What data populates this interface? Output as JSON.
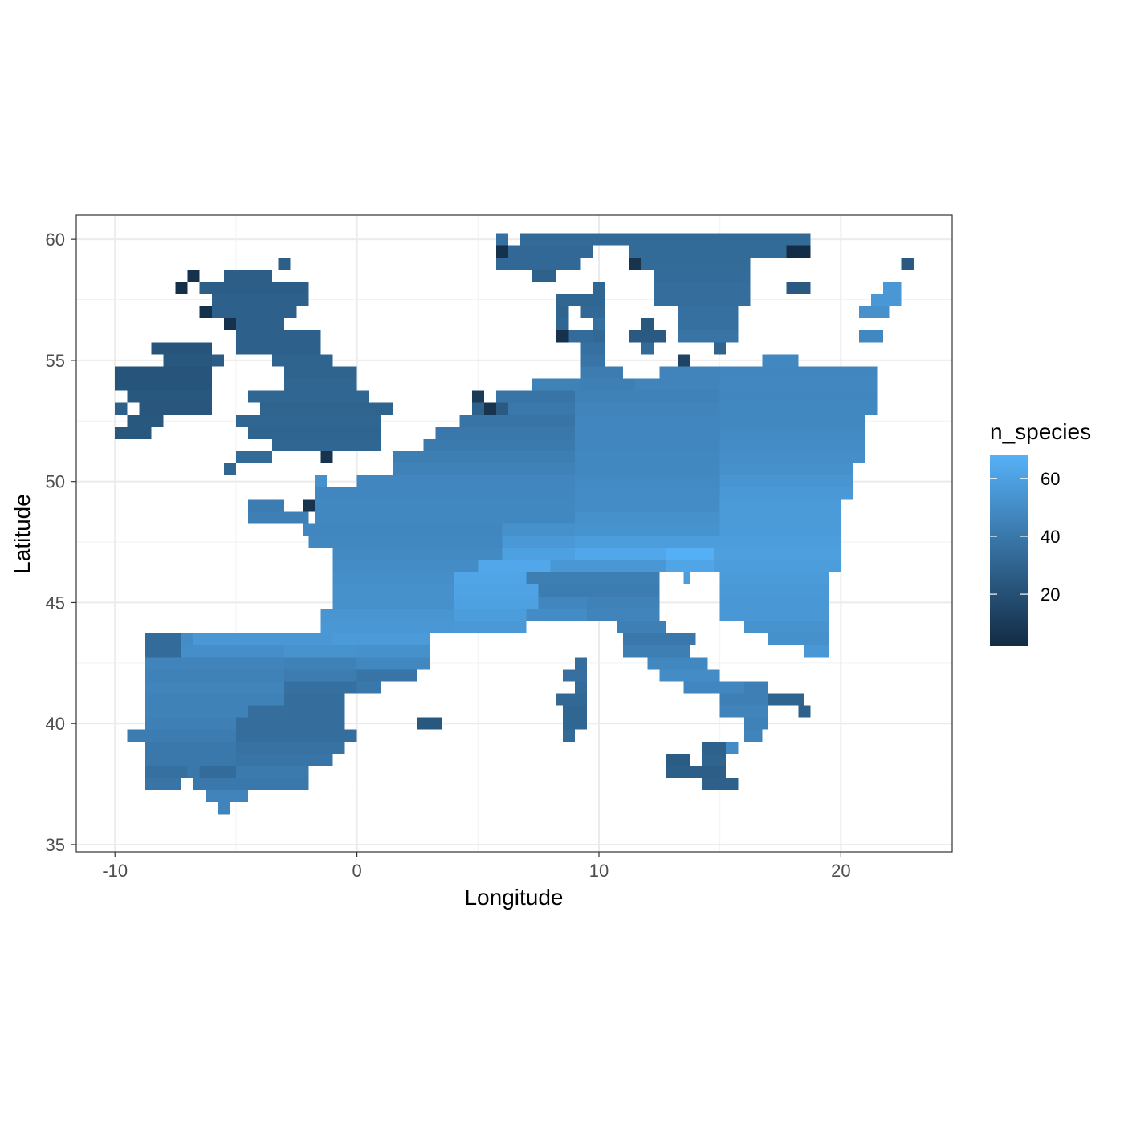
{
  "chart_data": {
    "type": "heatmap",
    "title": "",
    "xlabel": "Longitude",
    "ylabel": "Latitude",
    "xlim": [
      -11.6,
      24.6
    ],
    "ylim": [
      34.7,
      61.0
    ],
    "x_ticks": [
      -10,
      0,
      10,
      20
    ],
    "y_ticks": [
      35,
      40,
      45,
      50,
      55,
      60
    ],
    "x_tick_labels": [
      "-10",
      "0",
      "10",
      "20"
    ],
    "y_tick_labels": [
      "35",
      "40",
      "45",
      "50",
      "55",
      "60"
    ],
    "grid": true,
    "cell_size_deg": 0.5,
    "legend": {
      "title": "n_species",
      "position": "right",
      "min": 2,
      "max": 68,
      "breaks": [
        20,
        40,
        60
      ],
      "break_labels": [
        "20",
        "40",
        "60"
      ],
      "color_low": "#132b43",
      "color_high": "#56b1f7"
    },
    "rows_lat_start": 60.0,
    "rows_lat_step": -0.5,
    "row_segments": [
      [
        [
          5.75,
          6.25,
          36
        ],
        [
          6.75,
          18.75,
          33
        ]
      ],
      [
        [
          5.75,
          6.25,
          5
        ],
        [
          6.25,
          9.75,
          32
        ],
        [
          11.25,
          17.75,
          33
        ],
        [
          17.75,
          18.75,
          3
        ]
      ],
      [
        [
          5.75,
          9.25,
          32
        ],
        [
          11.25,
          11.75,
          6
        ],
        [
          11.75,
          16.25,
          33
        ],
        [
          -3.25,
          -2.75,
          27
        ],
        [
          22.5,
          23.0,
          25
        ]
      ],
      [
        [
          7.25,
          8.25,
          29
        ],
        [
          12.25,
          16.25,
          34
        ],
        [
          -5.5,
          -3.5,
          27
        ],
        [
          -7.0,
          -6.5,
          5
        ]
      ],
      [
        [
          9.75,
          10.25,
          31
        ],
        [
          12.25,
          16.25,
          35
        ],
        [
          -7.5,
          -7.0,
          4
        ],
        [
          -6.5,
          -2.0,
          27
        ],
        [
          17.75,
          18.75,
          25
        ],
        [
          21.75,
          22.5,
          55
        ]
      ],
      [
        [
          8.25,
          10.25,
          31
        ],
        [
          12.25,
          16.25,
          35
        ],
        [
          -6.0,
          -2.0,
          28
        ],
        [
          21.25,
          22.5,
          55
        ]
      ],
      [
        [
          8.25,
          8.75,
          30
        ],
        [
          9.25,
          10.25,
          32
        ],
        [
          13.25,
          15.75,
          36
        ],
        [
          -6.5,
          -6.0,
          5
        ],
        [
          -6.0,
          -2.5,
          28
        ],
        [
          20.75,
          22.0,
          52
        ]
      ],
      [
        [
          8.25,
          8.75,
          31
        ],
        [
          9.75,
          10.25,
          36
        ],
        [
          11.75,
          12.25,
          24
        ],
        [
          13.25,
          15.75,
          36
        ],
        [
          -5.5,
          -5.0,
          5
        ],
        [
          -5.0,
          -3.0,
          28
        ]
      ],
      [
        [
          8.25,
          8.75,
          5
        ],
        [
          8.75,
          9.75,
          34
        ],
        [
          9.75,
          10.25,
          32
        ],
        [
          11.25,
          12.75,
          25
        ],
        [
          13.25,
          15.75,
          38
        ],
        [
          -5.0,
          -1.5,
          28
        ],
        [
          20.75,
          21.75,
          48
        ]
      ],
      [
        [
          9.25,
          10.25,
          36
        ],
        [
          11.75,
          12.25,
          33
        ],
        [
          14.75,
          15.25,
          30
        ],
        [
          -8.5,
          -6.0,
          22
        ],
        [
          -5.0,
          -1.5,
          28
        ]
      ],
      [
        [
          9.25,
          10.25,
          38
        ],
        [
          13.25,
          13.75,
          14
        ],
        [
          16.75,
          18.25,
          48
        ],
        [
          -8.0,
          -6.0,
          24
        ],
        [
          -6.0,
          -5.5,
          26
        ],
        [
          -3.5,
          -1.0,
          30
        ]
      ],
      [
        [
          9.25,
          11.0,
          42
        ],
        [
          -10.0,
          -6.0,
          22
        ],
        [
          -3.0,
          0.0,
          30
        ],
        [
          12.5,
          15.0,
          46
        ],
        [
          15.0,
          21.5,
          47
        ]
      ],
      [
        [
          7.25,
          9.25,
          45
        ],
        [
          9.25,
          11.5,
          44
        ],
        [
          11.5,
          15.0,
          46
        ],
        [
          15.0,
          21.5,
          48
        ],
        [
          -10.0,
          -6.0,
          22
        ],
        [
          -3.0,
          0.0,
          31
        ]
      ],
      [
        [
          4.75,
          5.25,
          10
        ],
        [
          5.75,
          9.0,
          38
        ],
        [
          9.0,
          15.0,
          45
        ],
        [
          15.0,
          21.5,
          47
        ],
        [
          -9.5,
          -6.0,
          24
        ],
        [
          -4.5,
          0.5,
          31
        ]
      ],
      [
        [
          5.25,
          5.75,
          6
        ],
        [
          5.75,
          6.25,
          25
        ],
        [
          4.75,
          5.25,
          28
        ],
        [
          6.25,
          9.0,
          40
        ],
        [
          9.0,
          15.0,
          46
        ],
        [
          15.0,
          21.5,
          48
        ],
        [
          -10.0,
          -9.5,
          28
        ],
        [
          -9.0,
          -6.0,
          23
        ],
        [
          -4.0,
          1.5,
          30
        ]
      ],
      [
        [
          4.25,
          9.0,
          38
        ],
        [
          9.0,
          15.0,
          47
        ],
        [
          15.0,
          21.0,
          48
        ],
        [
          -9.5,
          -8.0,
          24
        ],
        [
          -5.0,
          1.0,
          31
        ]
      ],
      [
        [
          3.25,
          9.0,
          40
        ],
        [
          9.0,
          15.0,
          47
        ],
        [
          15.0,
          21.0,
          49
        ],
        [
          -10.0,
          -8.5,
          24
        ],
        [
          -4.5,
          1.0,
          30
        ]
      ],
      [
        [
          2.75,
          9.0,
          41
        ],
        [
          9.0,
          15.0,
          47
        ],
        [
          15.0,
          21.0,
          50
        ],
        [
          -3.5,
          1.0,
          31
        ]
      ],
      [
        [
          1.5,
          9.0,
          43
        ],
        [
          9.0,
          15.0,
          48
        ],
        [
          15.0,
          21.0,
          51
        ],
        [
          -5.0,
          -3.5,
          33
        ],
        [
          -1.5,
          -1.0,
          6
        ]
      ],
      [
        [
          1.5,
          9.0,
          45
        ],
        [
          9.0,
          15.0,
          48
        ],
        [
          15.0,
          20.5,
          52
        ],
        [
          -5.5,
          -5.0,
          31
        ]
      ],
      [
        [
          0.0,
          9.0,
          47
        ],
        [
          9.0,
          15.0,
          49
        ],
        [
          15.0,
          20.5,
          54
        ],
        [
          -1.75,
          -1.25,
          52
        ]
      ],
      [
        [
          -1.75,
          9.0,
          47
        ],
        [
          9.0,
          15.0,
          50
        ],
        [
          15.0,
          20.5,
          56
        ]
      ],
      [
        [
          -1.75,
          9.0,
          48
        ],
        [
          9.0,
          15.0,
          50
        ],
        [
          15.0,
          20.0,
          57
        ],
        [
          -4.5,
          -3.0,
          42
        ],
        [
          -2.25,
          -1.75,
          6
        ]
      ],
      [
        [
          -1.75,
          9.0,
          48
        ],
        [
          9.0,
          15.0,
          52
        ],
        [
          15.0,
          20.0,
          57
        ],
        [
          -4.5,
          -2.0,
          44
        ]
      ],
      [
        [
          -2.25,
          6.0,
          47
        ],
        [
          6.0,
          9.0,
          52
        ],
        [
          9.0,
          15.0,
          53
        ],
        [
          15.0,
          20.0,
          57
        ]
      ],
      [
        [
          -2.0,
          6.0,
          48
        ],
        [
          6.0,
          9.0,
          56
        ],
        [
          9.0,
          15.0,
          58
        ],
        [
          15.0,
          20.0,
          58
        ]
      ],
      [
        [
          -1.0,
          6.0,
          49
        ],
        [
          6.0,
          9.0,
          60
        ],
        [
          9.0,
          12.75,
          63
        ],
        [
          12.75,
          14.75,
          67
        ],
        [
          14.75,
          20.0,
          59
        ]
      ],
      [
        [
          -1.0,
          5.0,
          50
        ],
        [
          5.0,
          8.0,
          63
        ],
        [
          8.0,
          12.75,
          55
        ],
        [
          12.75,
          14.75,
          62
        ],
        [
          14.75,
          20.0,
          58
        ]
      ],
      [
        [
          -1.0,
          4.0,
          51
        ],
        [
          4.0,
          7.0,
          62
        ],
        [
          7.0,
          12.5,
          43
        ],
        [
          13.5,
          13.75,
          58
        ],
        [
          15.0,
          19.5,
          57
        ]
      ],
      [
        [
          -1.0,
          4.0,
          52
        ],
        [
          4.0,
          7.5,
          61
        ],
        [
          7.5,
          12.5,
          42
        ],
        [
          15.0,
          19.5,
          56
        ]
      ],
      [
        [
          -1.0,
          4.0,
          52
        ],
        [
          4.0,
          7.5,
          60
        ],
        [
          7.5,
          9.5,
          47
        ],
        [
          9.5,
          12.5,
          45
        ],
        [
          15.0,
          19.5,
          55
        ]
      ],
      [
        [
          -1.5,
          4.0,
          54
        ],
        [
          4.0,
          7.0,
          58
        ],
        [
          7.0,
          9.5,
          50
        ],
        [
          9.5,
          12.5,
          46
        ],
        [
          15.0,
          19.5,
          55
        ]
      ],
      [
        [
          -1.5,
          4.0,
          55
        ],
        [
          4.0,
          7.0,
          56
        ],
        [
          10.75,
          12.75,
          44
        ],
        [
          16.0,
          19.5,
          53
        ]
      ],
      [
        [
          -8.75,
          -7.25,
          34
        ],
        [
          -7.25,
          -6.75,
          50
        ],
        [
          -6.75,
          -1.0,
          55
        ],
        [
          -1.0,
          3.0,
          57
        ],
        [
          11.0,
          14.0,
          40
        ],
        [
          17.0,
          19.5,
          52
        ]
      ],
      [
        [
          -8.75,
          -7.25,
          34
        ],
        [
          -7.25,
          -3.0,
          51
        ],
        [
          -3.0,
          0.0,
          53
        ],
        [
          0.0,
          3.0,
          52
        ],
        [
          11.0,
          13.75,
          43
        ],
        [
          18.5,
          19.5,
          55
        ]
      ],
      [
        [
          -8.75,
          -3.0,
          46
        ],
        [
          -3.0,
          0.0,
          45
        ],
        [
          0.0,
          3.0,
          48
        ],
        [
          9.0,
          9.5,
          35
        ],
        [
          12.0,
          14.5,
          48
        ]
      ],
      [
        [
          -8.75,
          -3.0,
          45
        ],
        [
          -3.0,
          0.0,
          42
        ],
        [
          0.0,
          2.5,
          38
        ],
        [
          8.5,
          9.5,
          36
        ],
        [
          12.5,
          15.0,
          50
        ]
      ],
      [
        [
          -8.75,
          -3.0,
          46
        ],
        [
          -3.0,
          0.0,
          36
        ],
        [
          0.0,
          1.0,
          40
        ],
        [
          9.0,
          9.5,
          34
        ],
        [
          13.5,
          16.0,
          47
        ],
        [
          16.0,
          17.0,
          44
        ]
      ],
      [
        [
          -8.75,
          -3.0,
          45
        ],
        [
          -3.0,
          -0.5,
          35
        ],
        [
          8.25,
          9.5,
          32
        ],
        [
          15.0,
          17.0,
          44
        ],
        [
          17.0,
          18.5,
          30
        ]
      ],
      [
        [
          -8.75,
          -4.5,
          45
        ],
        [
          -4.5,
          -0.5,
          35
        ],
        [
          8.5,
          9.5,
          31
        ],
        [
          15.0,
          17.0,
          46
        ],
        [
          18.25,
          18.75,
          28
        ]
      ],
      [
        [
          -8.75,
          -5.0,
          44
        ],
        [
          -5.0,
          -0.5,
          35
        ],
        [
          2.5,
          3.5,
          24
        ],
        [
          8.5,
          9.5,
          31
        ],
        [
          16.0,
          17.0,
          45
        ]
      ],
      [
        [
          -9.5,
          -5.0,
          42
        ],
        [
          -5.0,
          0.0,
          35
        ],
        [
          8.5,
          9.0,
          33
        ],
        [
          16.0,
          16.75,
          46
        ]
      ],
      [
        [
          -8.75,
          -5.0,
          40
        ],
        [
          -5.0,
          -0.5,
          37
        ],
        [
          14.25,
          15.25,
          29
        ],
        [
          15.25,
          15.75,
          50
        ]
      ],
      [
        [
          -8.75,
          -5.0,
          40
        ],
        [
          -5.0,
          -1.0,
          38
        ],
        [
          12.75,
          13.75,
          26
        ],
        [
          14.25,
          15.25,
          30
        ]
      ],
      [
        [
          -8.75,
          -7.0,
          36
        ],
        [
          -7.0,
          -6.5,
          40
        ],
        [
          -6.5,
          -5.0,
          34
        ],
        [
          -5.0,
          -2.0,
          41
        ],
        [
          12.75,
          15.25,
          27
        ]
      ],
      [
        [
          -8.75,
          -7.25,
          38
        ],
        [
          -6.75,
          -2.0,
          40
        ],
        [
          14.25,
          15.75,
          28
        ]
      ],
      [
        [
          -6.25,
          -4.5,
          46
        ]
      ],
      [
        [
          -5.75,
          -5.25,
          46
        ]
      ]
    ]
  }
}
